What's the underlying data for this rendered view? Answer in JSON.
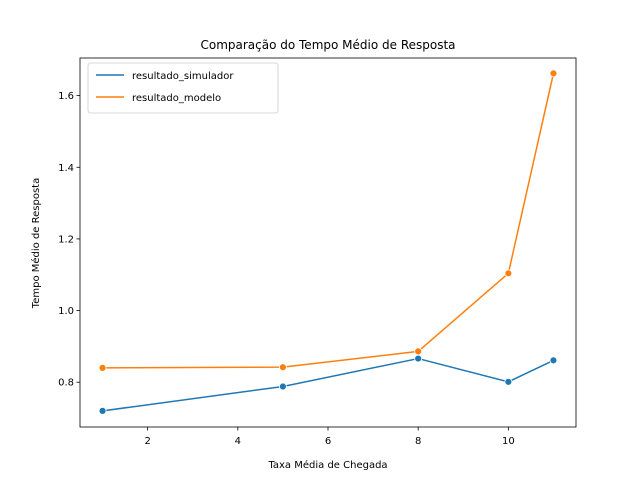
{
  "chart_data": {
    "type": "line",
    "title": "Comparação do Tempo Médio de Resposta",
    "xlabel": "Taxa Média de Chegada",
    "ylabel": "Tempo Médio de Resposta",
    "xlim": [
      0.5,
      11.5
    ],
    "ylim": [
      0.675,
      1.705
    ],
    "x_ticks": [
      2,
      4,
      6,
      8,
      10
    ],
    "y_ticks": [
      0.8,
      1.0,
      1.2,
      1.4,
      1.6
    ],
    "x_tick_labels": [
      "2",
      "4",
      "6",
      "8",
      "10"
    ],
    "y_tick_labels": [
      "0.8",
      "1.0",
      "1.2",
      "1.4",
      "1.6"
    ],
    "grid": false,
    "legend_position": "top-left",
    "x": [
      1,
      5,
      8,
      10,
      11
    ],
    "series": [
      {
        "name": "resultado_simulador",
        "color": "#1f77b4",
        "values": [
          0.72,
          0.788,
          0.866,
          0.801,
          0.861
        ]
      },
      {
        "name": "resultado_modelo",
        "color": "#ff7f0e",
        "values": [
          0.84,
          0.842,
          0.886,
          1.104,
          1.662
        ]
      }
    ]
  }
}
